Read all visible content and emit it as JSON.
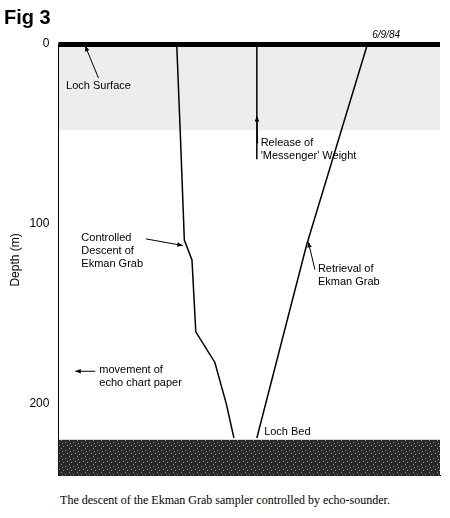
{
  "chart_data": {
    "type": "line",
    "title": "Fig 3",
    "y_label": "Depth (m)",
    "date": "6/9/84",
    "caption": "The descent of the Ekman Grab sampler controlled by echo-sounder.",
    "xlim": [
      0,
      100
    ],
    "ylim": [
      0,
      240
    ],
    "yticks": [
      0,
      100,
      200
    ],
    "tick_labels": "y",
    "grid": false,
    "legend": "none",
    "series": [
      {
        "color": "#000000",
        "line_style": "solid",
        "marker": "none",
        "x": [
          31,
          32,
          33,
          35,
          36,
          41,
          44,
          46
        ],
        "values": [
          0,
          53,
          109,
          120,
          160,
          177,
          200,
          219
        ]
      },
      {
        "color": "#000000",
        "line_style": "solid",
        "marker": "none",
        "x": [
          52,
          52
        ],
        "values": [
          0,
          64
        ]
      },
      {
        "color": "#000000",
        "line_style": "solid",
        "marker": "none",
        "x": [
          52,
          65,
          81
        ],
        "values": [
          219,
          112,
          0
        ]
      }
    ],
    "bed": {
      "label": "Loch Bed",
      "depth": 220
    },
    "annotations": [
      {
        "lines": [
          "Loch Surface"
        ]
      },
      {
        "lines": [
          "Release of",
          "'Messenger' Weight"
        ]
      },
      {
        "lines": [
          "Controlled",
          "Descent of",
          "Ekman Grab"
        ]
      },
      {
        "lines": [
          "Retrieval of",
          "Ekman Grab"
        ]
      },
      {
        "lines": [
          "movement of",
          "echo chart paper"
        ]
      }
    ]
  }
}
